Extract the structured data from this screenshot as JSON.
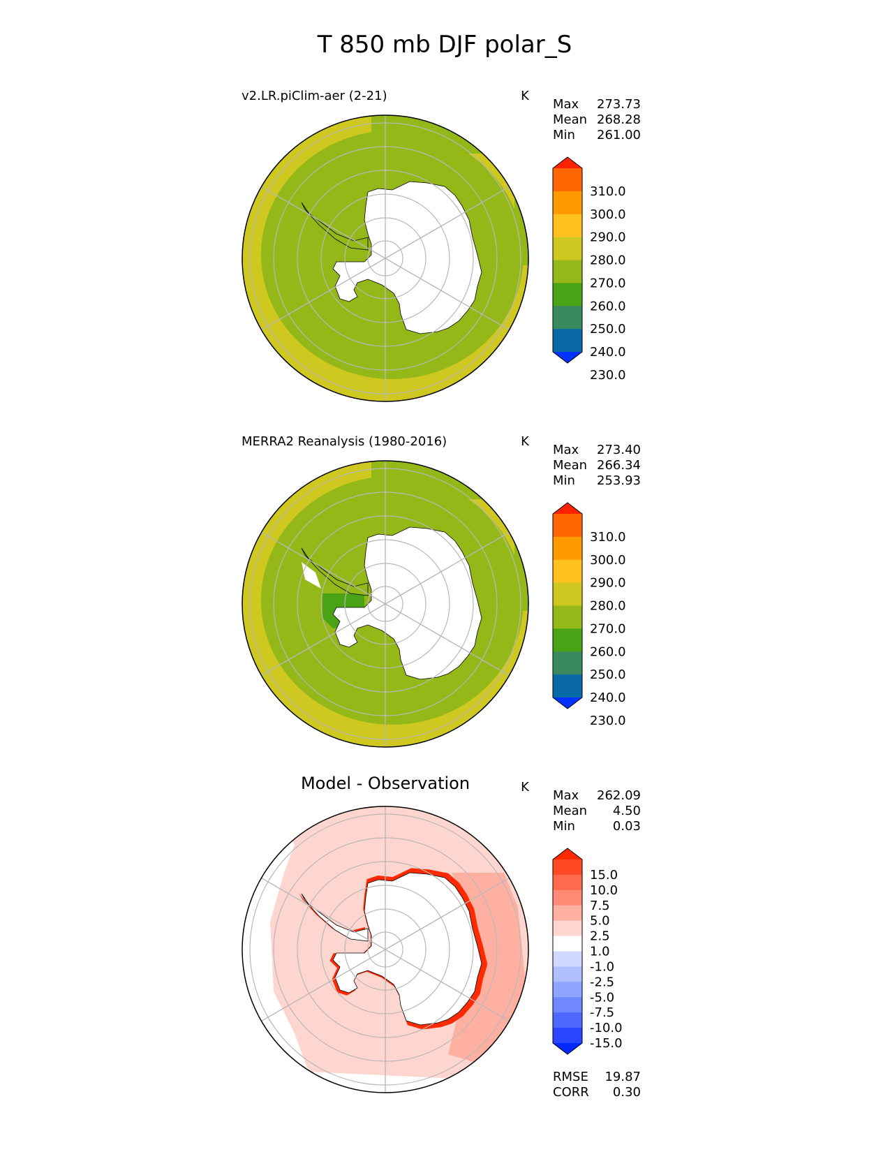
{
  "figure": {
    "title": "T 850 mb DJF polar_S"
  },
  "chart_data": [
    {
      "type": "heatmap",
      "projection": "south-polar-stereographic",
      "title": "v2.LR.piClim-aer (2-21)",
      "units": "K",
      "stats": {
        "max": "273.73",
        "mean": "268.28",
        "min": "261.00"
      },
      "stat_labels": {
        "max": "Max",
        "mean": "Mean",
        "min": "Min"
      },
      "colorbar": {
        "extend": "both",
        "labels": [
          "310.0",
          "300.0",
          "290.0",
          "280.0",
          "270.0",
          "260.0",
          "250.0",
          "240.0",
          "230.0"
        ],
        "colors_top_to_bottom": [
          "#ff2200",
          "#ff6600",
          "#ff9900",
          "#ffc020",
          "#cfc820",
          "#93b818",
          "#4aa315",
          "#3a8a5e",
          "#0a6aa8",
          "#0033ff"
        ]
      },
      "fill": {
        "outer_ring": "#cfc820",
        "mid": "#93b818",
        "land": "#ffffff"
      }
    },
    {
      "type": "heatmap",
      "projection": "south-polar-stereographic",
      "title": "MERRA2 Reanalysis (1980-2016)",
      "units": "K",
      "stats": {
        "max": "273.40",
        "mean": "266.34",
        "min": "253.93"
      },
      "stat_labels": {
        "max": "Max",
        "mean": "Mean",
        "min": "Min"
      },
      "colorbar": {
        "extend": "both",
        "labels": [
          "310.0",
          "300.0",
          "290.0",
          "280.0",
          "270.0",
          "260.0",
          "250.0",
          "240.0",
          "230.0"
        ],
        "colors_top_to_bottom": [
          "#ff2200",
          "#ff6600",
          "#ff9900",
          "#ffc020",
          "#cfc820",
          "#93b818",
          "#4aa315",
          "#3a8a5e",
          "#0a6aa8",
          "#0033ff"
        ]
      },
      "fill": {
        "outer_ring": "#cfc820",
        "mid": "#93b818",
        "land": "#ffffff",
        "cold_patch": "#4aa315"
      }
    },
    {
      "type": "heatmap",
      "projection": "south-polar-stereographic",
      "title": "Model - Observation",
      "units": "K",
      "stats": {
        "max": "262.09",
        "mean": "4.50",
        "min": "0.03"
      },
      "stat_labels": {
        "max": "Max",
        "mean": "Mean",
        "min": "Min"
      },
      "metrics": {
        "rmse": "19.87",
        "corr": "0.30"
      },
      "metric_labels": {
        "rmse": "RMSE",
        "corr": "CORR"
      },
      "colorbar": {
        "extend": "both",
        "labels": [
          "15.0",
          "10.0",
          "7.5",
          "5.0",
          "2.5",
          "1.0",
          "-1.0",
          "-2.5",
          "-5.0",
          "-7.5",
          "-10.0",
          "-15.0"
        ],
        "colors_top_to_bottom": [
          "#ff2a00",
          "#ff4a25",
          "#ff6a4d",
          "#ff8a73",
          "#ffb0a0",
          "#ffd6cf",
          "#ffffff",
          "#d0d8ff",
          "#b0c0ff",
          "#90a5ff",
          "#7088ff",
          "#4f68ff",
          "#2a45ff",
          "#0028ff"
        ]
      },
      "fill": {
        "ocean": "#ffd6cf",
        "east_band": "#ffb0a0",
        "coast": "#ff2a00",
        "land": "#ffffff"
      }
    }
  ]
}
